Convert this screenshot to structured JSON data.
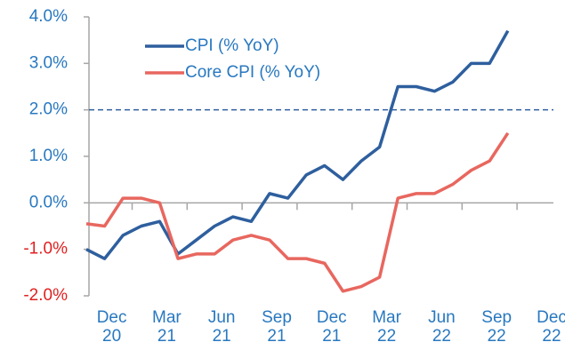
{
  "chart_data": {
    "type": "line",
    "categories": [
      null,
      "Dec 20",
      null,
      null,
      "Mar 21",
      null,
      null,
      "Jun 21",
      null,
      null,
      "Sep 21",
      null,
      null,
      "Dec 21",
      null,
      null,
      "Mar 22",
      null,
      null,
      "Jun 22",
      null,
      null,
      "Sep 22",
      null,
      null,
      "Dec 22"
    ],
    "series": [
      {
        "name": "CPI (% YoY)",
        "color": "#2e5f9e",
        "values": [
          -1.0,
          -1.2,
          -0.7,
          -0.5,
          -0.4,
          -1.1,
          -0.8,
          -0.5,
          -0.3,
          -0.4,
          0.2,
          0.1,
          0.6,
          0.8,
          0.5,
          0.9,
          1.2,
          2.5,
          2.5,
          2.4,
          2.6,
          3.0,
          3.0,
          3.7,
          null,
          null
        ]
      },
      {
        "name": "Core CPI (% YoY)",
        "color": "#e8675f",
        "values": [
          -0.45,
          -0.5,
          0.1,
          0.1,
          0.0,
          -1.2,
          -1.1,
          -1.1,
          -0.8,
          -0.7,
          -0.8,
          -1.2,
          -1.2,
          -1.3,
          -1.9,
          -1.8,
          -1.6,
          0.1,
          0.2,
          0.2,
          0.4,
          0.7,
          0.9,
          1.5,
          null,
          null
        ]
      }
    ],
    "ylim": [
      -2.0,
      4.0
    ],
    "yticks": [
      {
        "value": -2,
        "label": "-2.0%"
      },
      {
        "value": -1,
        "label": "-1.0%"
      },
      {
        "value": 0,
        "label": "0.0%"
      },
      {
        "value": 1,
        "label": "1.0%"
      },
      {
        "value": 2,
        "label": "2.0%"
      },
      {
        "value": 3,
        "label": "3.0%"
      },
      {
        "value": 4,
        "label": "4.0%"
      }
    ],
    "reference_line": {
      "value": 2,
      "color": "#2e5f9e"
    },
    "label_color": "#2878c0",
    "negative_label_color": "#e02020",
    "legend": "upper-left"
  }
}
